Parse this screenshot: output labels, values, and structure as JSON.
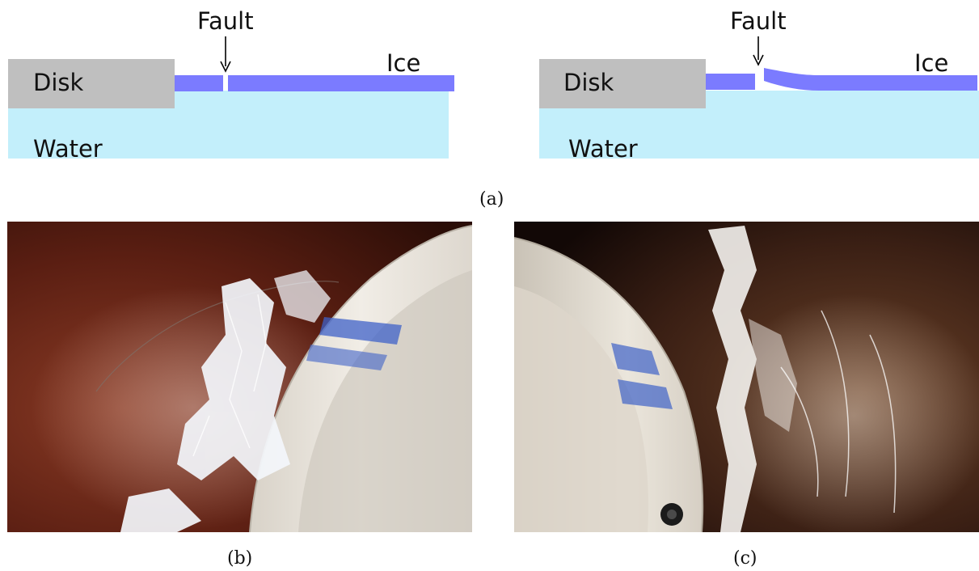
{
  "diagram_left": {
    "fault_label": "Fault",
    "ice_label": "Ice",
    "disk_label": "Disk",
    "water_label": "Water"
  },
  "diagram_right": {
    "fault_label": "Fault",
    "ice_label": "Ice",
    "disk_label": "Disk",
    "water_label": "Water"
  },
  "captions": {
    "a": "(a)",
    "b": "(b)",
    "c": "(c)"
  },
  "colors": {
    "disk": "#bfbfbf",
    "ice": "#7b7bff",
    "water": "#c3effb",
    "photo_background": "#5a1e12",
    "ring": "#e9e4dc",
    "marker": "#3f62c8"
  }
}
